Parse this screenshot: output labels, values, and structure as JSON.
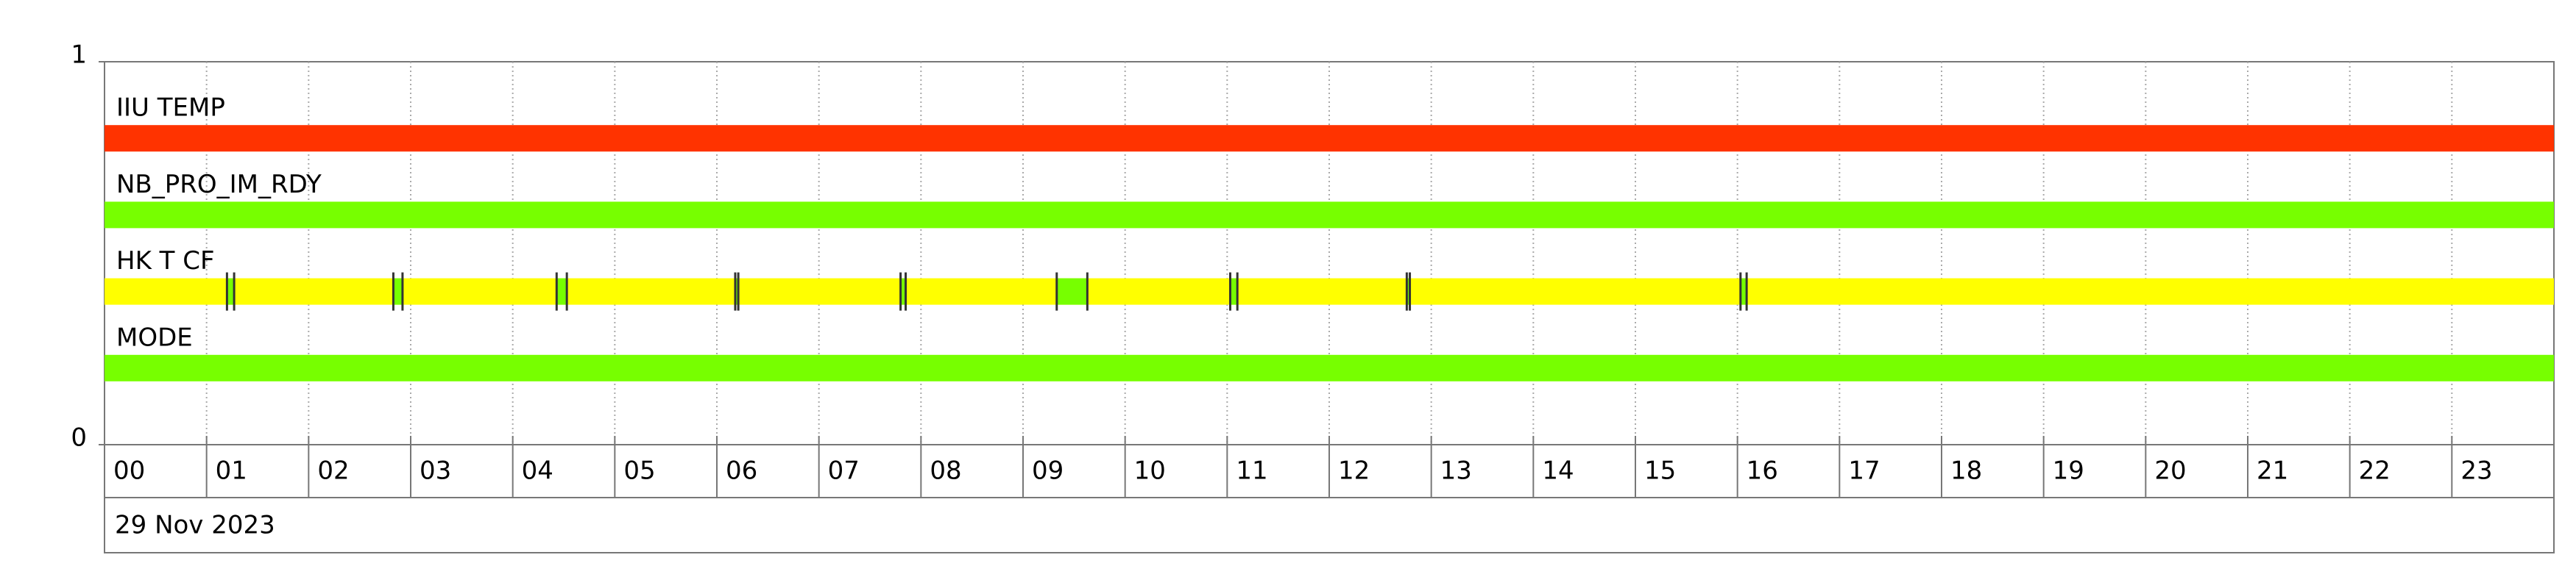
{
  "chart_data": {
    "type": "timeline",
    "date": "29 Nov 2023",
    "xlim": [
      0,
      24
    ],
    "xticks": [
      {
        "value": 0,
        "label": "00"
      },
      {
        "value": 1,
        "label": "01"
      },
      {
        "value": 2,
        "label": "02"
      },
      {
        "value": 3,
        "label": "03"
      },
      {
        "value": 4,
        "label": "04"
      },
      {
        "value": 5,
        "label": "05"
      },
      {
        "value": 6,
        "label": "06"
      },
      {
        "value": 7,
        "label": "07"
      },
      {
        "value": 8,
        "label": "08"
      },
      {
        "value": 9,
        "label": "09"
      },
      {
        "value": 10,
        "label": "10"
      },
      {
        "value": 11,
        "label": "11"
      },
      {
        "value": 12,
        "label": "12"
      },
      {
        "value": 13,
        "label": "13"
      },
      {
        "value": 14,
        "label": "14"
      },
      {
        "value": 15,
        "label": "15"
      },
      {
        "value": 16,
        "label": "16"
      },
      {
        "value": 17,
        "label": "17"
      },
      {
        "value": 18,
        "label": "18"
      },
      {
        "value": 19,
        "label": "19"
      },
      {
        "value": 20,
        "label": "20"
      },
      {
        "value": 21,
        "label": "21"
      },
      {
        "value": 22,
        "label": "22"
      },
      {
        "value": 23,
        "label": "23"
      }
    ],
    "ylim": [
      0,
      1
    ],
    "yticks": [
      0,
      1
    ],
    "grid": true,
    "series": [
      {
        "name": "IIU TEMP",
        "color": "#ff3300",
        "level": 0.8
      },
      {
        "name": "NB_PRO_IM_RDY",
        "color": "#77ff00",
        "level": 0.6
      },
      {
        "name": "HK T CF",
        "color": "#ffff00",
        "level": 0.4,
        "events": [
          {
            "start": 1.2,
            "end": 1.27
          },
          {
            "start": 2.83,
            "end": 2.92
          },
          {
            "start": 4.43,
            "end": 4.53
          },
          {
            "start": 6.18,
            "end": 6.21
          },
          {
            "start": 7.8,
            "end": 7.85
          },
          {
            "start": 9.33,
            "end": 9.63
          },
          {
            "start": 11.03,
            "end": 11.1
          },
          {
            "start": 12.76,
            "end": 12.79
          },
          {
            "start": 16.03,
            "end": 16.09
          }
        ],
        "event_color": "#77ff00"
      },
      {
        "name": "MODE",
        "color": "#77ff00",
        "level": 0.2
      }
    ]
  }
}
